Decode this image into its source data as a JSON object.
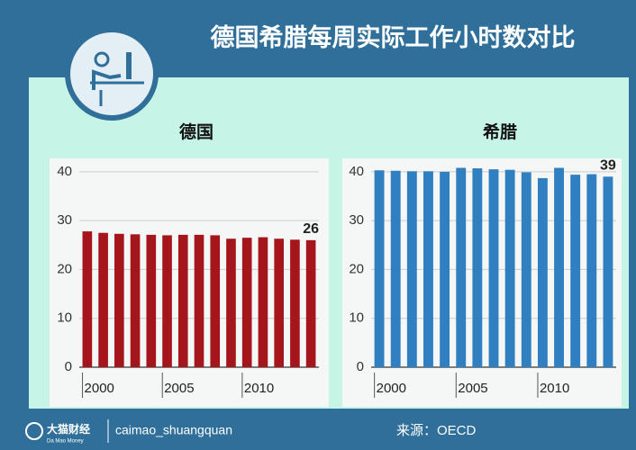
{
  "header": {
    "title": "德国希腊每周实际工作小时数对比"
  },
  "chart_data": [
    {
      "type": "bar",
      "title": "德国",
      "color": "#a5161c",
      "categories": [
        2000,
        null,
        null,
        null,
        null,
        2005,
        null,
        null,
        null,
        null,
        2010,
        null,
        null,
        null,
        null
      ],
      "values": [
        27.8,
        27.5,
        27.3,
        27.2,
        27.1,
        27.0,
        27.1,
        27.1,
        27.0,
        26.3,
        26.5,
        26.6,
        26.3,
        26.1,
        26
      ],
      "value_labels": [
        null,
        null,
        null,
        null,
        null,
        null,
        null,
        null,
        null,
        null,
        null,
        null,
        null,
        null,
        "26"
      ],
      "ylim": [
        0,
        42
      ],
      "yticks": [
        0,
        10,
        20,
        30,
        40
      ],
      "grid": true
    },
    {
      "type": "bar",
      "title": "希腊",
      "color": "#2f7fc1",
      "categories": [
        2000,
        null,
        null,
        null,
        null,
        2005,
        null,
        null,
        null,
        null,
        2010,
        null,
        null,
        null,
        null
      ],
      "values": [
        40.3,
        40.2,
        40.1,
        40.1,
        40.0,
        40.8,
        40.7,
        40.5,
        40.4,
        39.9,
        38.7,
        40.8,
        39.4,
        39.5,
        39
      ],
      "value_labels": [
        null,
        null,
        null,
        null,
        null,
        null,
        null,
        null,
        null,
        null,
        null,
        null,
        null,
        null,
        "39"
      ],
      "ylim": [
        0,
        42
      ],
      "yticks": [
        0,
        10,
        20,
        30,
        40
      ],
      "grid": true
    }
  ],
  "footer": {
    "brand": "大猫财经",
    "brand_en": "Da Mao Money",
    "account": "caimao_shuangquan",
    "source": "来源：OECD"
  }
}
